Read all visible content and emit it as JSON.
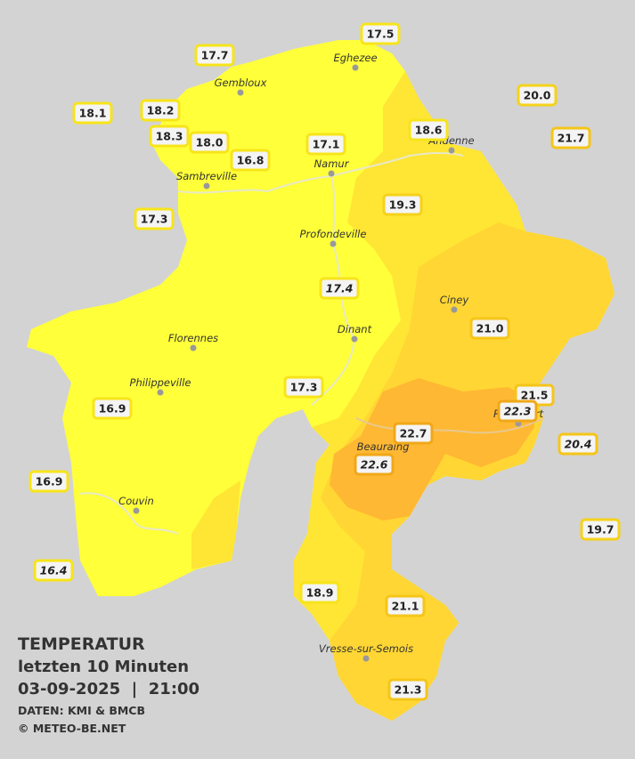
{
  "title": "TEMPERATUR",
  "subtitle": "letzten 10 Minuten",
  "datetime": "03-09-2025  |  21:00",
  "source": "DATEN: KMI & BMCB",
  "copyright": "© METEO-BE.NET",
  "cities": [
    "Eghezee",
    "Gembloux",
    "Andenne",
    "Namur",
    "Sambreville",
    "Profondeville",
    "Ciney",
    "Dinant",
    "Florennes",
    "Philippeville",
    "Couvin",
    "Beauraing",
    "Rochefort",
    "Vresse-sur-Semois"
  ],
  "stations": [
    "17.5",
    "17.7",
    "20.0",
    "18.1",
    "18.2",
    "18.3",
    "18.0",
    "18.6",
    "17.1",
    "21.7",
    "16.8",
    "19.3",
    "17.3",
    "17.4",
    "21.0",
    "17.3",
    "21.5",
    "16.9",
    "22.3",
    "22.7",
    "20.4",
    "22.6",
    "16.9",
    "19.7",
    "16.4",
    "18.9",
    "21.1",
    "21.3"
  ]
}
